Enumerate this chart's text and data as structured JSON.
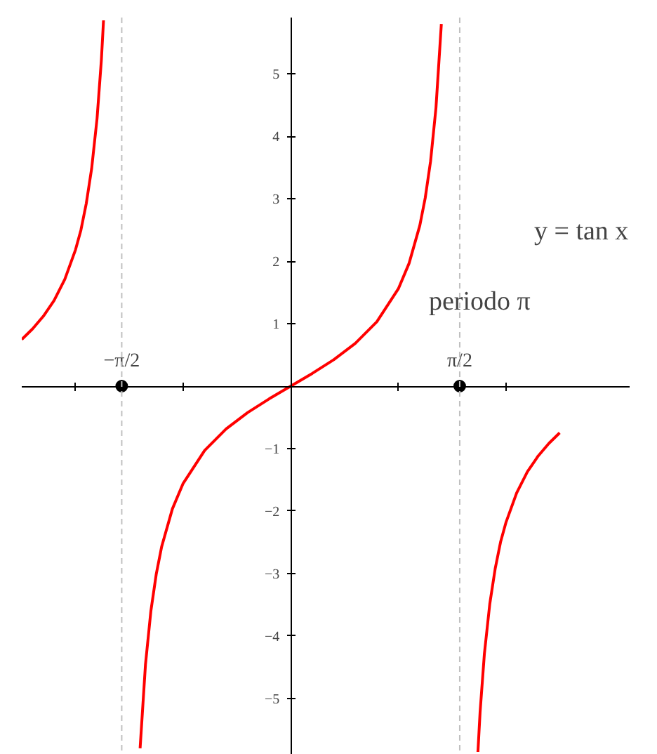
{
  "chart_data": {
    "type": "line",
    "xlim": [
      -2.5,
      3.15
    ],
    "ylim": [
      -5.9,
      5.9
    ],
    "xticks": [
      {
        "value": -2,
        "label": null
      },
      {
        "value": -1.5708,
        "label": "−π/2"
      },
      {
        "value": -1,
        "label": null
      },
      {
        "value": 1,
        "label": null
      },
      {
        "value": 1.5708,
        "label": "π/2"
      },
      {
        "value": 2,
        "label": null
      }
    ],
    "yticks": [
      {
        "value": -5,
        "label": "−5"
      },
      {
        "value": -4,
        "label": "−4"
      },
      {
        "value": -3,
        "label": "−3"
      },
      {
        "value": -2,
        "label": "−2"
      },
      {
        "value": -1,
        "label": "−1"
      },
      1,
      2,
      3,
      4,
      5
    ],
    "grid": false,
    "marker": "none",
    "line_style": "solid",
    "series": [
      {
        "color": "#ff0000",
        "x": [
          -2.5,
          -2.4,
          -2.3,
          -2.2,
          -2.1,
          -2.0,
          -1.95,
          -1.9,
          -1.85,
          -1.8,
          -1.76,
          -1.74
        ],
        "values": [
          0.747,
          0.916,
          1.118,
          1.369,
          1.709,
          2.185,
          2.498,
          2.927,
          3.488,
          4.286,
          5.222,
          5.855
        ]
      },
      {
        "color": "#ff0000",
        "x": [
          -1.4,
          -1.35,
          -1.3,
          -1.25,
          -1.2,
          -1.1,
          -1.0,
          -0.8,
          -0.6,
          -0.4,
          -0.2,
          0,
          0.2,
          0.4,
          0.6,
          0.8,
          1.0,
          1.1,
          1.2,
          1.25,
          1.3,
          1.35,
          1.4
        ],
        "values": [
          -5.798,
          -4.455,
          -3.602,
          -3.01,
          -2.572,
          -1.965,
          -1.557,
          -1.03,
          -0.684,
          -0.423,
          -0.203,
          0,
          0.203,
          0.423,
          0.684,
          1.03,
          1.557,
          1.965,
          2.572,
          3.01,
          3.602,
          4.455,
          5.798
        ]
      },
      {
        "color": "#ff0000",
        "x": [
          1.74,
          1.76,
          1.8,
          1.85,
          1.9,
          1.95,
          2.0,
          2.1,
          2.2,
          2.3,
          2.4,
          2.5
        ],
        "values": [
          -5.855,
          -5.222,
          -4.286,
          -3.488,
          -2.927,
          -2.498,
          -2.185,
          -1.709,
          -1.369,
          -1.118,
          -0.916,
          -0.747
        ]
      },
      {
        "type": "scatter",
        "marker": "circle",
        "color": "#000000",
        "x": [
          -1.5708,
          1.5708
        ],
        "values": [
          0,
          0
        ]
      }
    ],
    "ref_lines": [
      {
        "axis": "x",
        "value": -1.5708,
        "color": "#c0c0c0",
        "line_style": "dashed"
      },
      {
        "axis": "x",
        "value": 1.5708,
        "color": "#c0c0c0",
        "line_style": "dashed"
      }
    ],
    "annotations": [
      "y = tan x",
      "periodo π"
    ]
  }
}
